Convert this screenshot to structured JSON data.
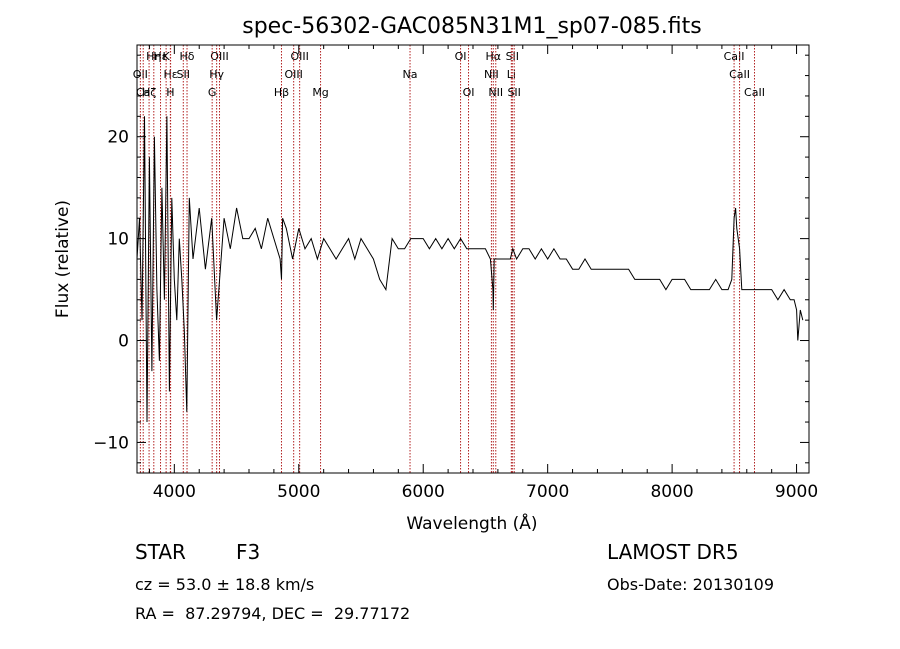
{
  "chart_data": {
    "type": "line",
    "title": "spec-56302-GAC085N31M1_sp07-085.fits",
    "xlabel": "Wavelength (Å)",
    "ylabel": "Flux (relative)",
    "xlim": [
      3700,
      9100
    ],
    "ylim": [
      -13,
      29
    ],
    "xticks": [
      4000,
      5000,
      6000,
      7000,
      8000,
      9000
    ],
    "yticks": [
      -10,
      0,
      10,
      20
    ],
    "grid": false,
    "line_color": "#000000",
    "marker_color": "#b22222",
    "spectral_lines": [
      {
        "label": "Hη",
        "wl": 3835,
        "row": 0
      },
      {
        "label": "OII",
        "wl": 3727,
        "row": 1
      },
      {
        "label": "Ca",
        "wl": 3750,
        "row": 2
      },
      {
        "label": "Hε",
        "wl": 3889,
        "row": 0
      },
      {
        "label": "Hζ",
        "wl": 3797,
        "row": 2
      },
      {
        "label": "K",
        "wl": 3934,
        "row": 0
      },
      {
        "label": "Hε",
        "wl": 3970,
        "row": 1
      },
      {
        "label": "H",
        "wl": 3968,
        "row": 2
      },
      {
        "label": "Hδ",
        "wl": 4102,
        "row": 0
      },
      {
        "label": "SII",
        "wl": 4072,
        "row": 1
      },
      {
        "label": "OIII",
        "wl": 4363,
        "row": 0
      },
      {
        "label": "Hγ",
        "wl": 4340,
        "row": 1
      },
      {
        "label": "G",
        "wl": 4304,
        "row": 2
      },
      {
        "label": "Hβ",
        "wl": 4861,
        "row": 2
      },
      {
        "label": "OIII",
        "wl": 5007,
        "row": 0
      },
      {
        "label": "OIII",
        "wl": 4959,
        "row": 1
      },
      {
        "label": "Mg",
        "wl": 5175,
        "row": 2
      },
      {
        "label": "Na",
        "wl": 5894,
        "row": 1
      },
      {
        "label": "OI",
        "wl": 6300,
        "row": 0
      },
      {
        "label": "OI",
        "wl": 6364,
        "row": 2
      },
      {
        "label": "Hα",
        "wl": 6563,
        "row": 0
      },
      {
        "label": "NII",
        "wl": 6548,
        "row": 1
      },
      {
        "label": "NII",
        "wl": 6583,
        "row": 2
      },
      {
        "label": "SII",
        "wl": 6716,
        "row": 0
      },
      {
        "label": "Li",
        "wl": 6708,
        "row": 1
      },
      {
        "label": "SII",
        "wl": 6731,
        "row": 2
      },
      {
        "label": "CaII",
        "wl": 8498,
        "row": 0
      },
      {
        "label": "CaII",
        "wl": 8542,
        "row": 1
      },
      {
        "label": "CaII",
        "wl": 8662,
        "row": 2
      }
    ],
    "series": [
      {
        "x": [
          3700,
          3720,
          3740,
          3760,
          3780,
          3800,
          3820,
          3840,
          3860,
          3880,
          3900,
          3920,
          3940,
          3960,
          3980,
          4000,
          4020,
          4040,
          4060,
          4080,
          4100,
          4120,
          4150,
          4200,
          4250,
          4300,
          4340,
          4400,
          4450,
          4500,
          4550,
          4600,
          4650,
          4700,
          4750,
          4800,
          4850,
          4861,
          4870,
          4900,
          4950,
          5000,
          5050,
          5100,
          5150,
          5200,
          5250,
          5300,
          5350,
          5400,
          5450,
          5500,
          5550,
          5600,
          5650,
          5700,
          5750,
          5800,
          5850,
          5900,
          5950,
          6000,
          6050,
          6100,
          6150,
          6200,
          6250,
          6300,
          6350,
          6400,
          6450,
          6500,
          6540,
          6560,
          6563,
          6570,
          6600,
          6650,
          6700,
          6720,
          6750,
          6800,
          6850,
          6900,
          6950,
          7000,
          7050,
          7100,
          7150,
          7200,
          7250,
          7300,
          7350,
          7400,
          7450,
          7500,
          7550,
          7600,
          7650,
          7700,
          7750,
          7800,
          7850,
          7900,
          7950,
          8000,
          8050,
          8100,
          8150,
          8200,
          8250,
          8300,
          8350,
          8400,
          8450,
          8480,
          8498,
          8510,
          8520,
          8542,
          8560,
          8600,
          8662,
          8700,
          8750,
          8800,
          8850,
          8900,
          8950,
          8980,
          9000,
          9010,
          9030,
          9050
        ],
        "y": [
          8,
          12,
          2,
          22,
          -8,
          18,
          -3,
          20,
          5,
          -2,
          15,
          4,
          22,
          -5,
          14,
          6,
          2,
          10,
          6,
          1,
          -7,
          14,
          8,
          13,
          7,
          12,
          2,
          12,
          9,
          13,
          10,
          10,
          11,
          9,
          12,
          10,
          8,
          6,
          12,
          11,
          8,
          11,
          9,
          10,
          8,
          10,
          9,
          8,
          9,
          10,
          8,
          10,
          9,
          8,
          6,
          5,
          10,
          9,
          9,
          10,
          10,
          10,
          9,
          10,
          9,
          10,
          9,
          10,
          9,
          9,
          9,
          9,
          8,
          5,
          3,
          8,
          8,
          8,
          8,
          9,
          8,
          9,
          9,
          8,
          9,
          8,
          9,
          8,
          8,
          7,
          7,
          8,
          7,
          7,
          7,
          7,
          7,
          7,
          7,
          6,
          6,
          6,
          6,
          6,
          5,
          6,
          6,
          6,
          5,
          5,
          5,
          5,
          6,
          5,
          5,
          6,
          12,
          13,
          11,
          9,
          5,
          5,
          5,
          5,
          5,
          5,
          4,
          5,
          4,
          4,
          3,
          0,
          3,
          2
        ]
      }
    ]
  },
  "info": {
    "object_type": "STAR",
    "subclass": "F3",
    "survey": "LAMOST DR5",
    "redshift": "cz = 53.0 ± 18.8 km/s",
    "obs_date": "Obs-Date: 20130109",
    "coords": "RA =  87.29794, DEC =  29.77172"
  }
}
